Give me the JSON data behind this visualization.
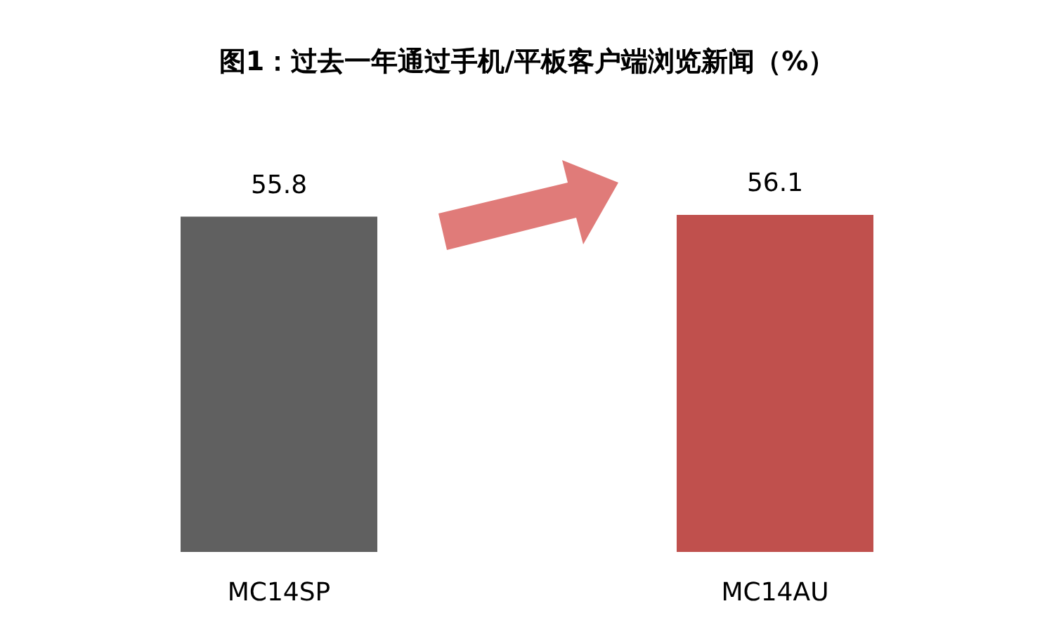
{
  "chart_data": {
    "type": "bar",
    "title": "图1：过去一年通过手机/平板客户端浏览新闻（%）",
    "categories": [
      "MC14SP",
      "MC14AU"
    ],
    "values": [
      55.8,
      56.1
    ],
    "colors": [
      "#606060",
      "#c0504d"
    ],
    "data_labels": true,
    "grid": false
  }
}
